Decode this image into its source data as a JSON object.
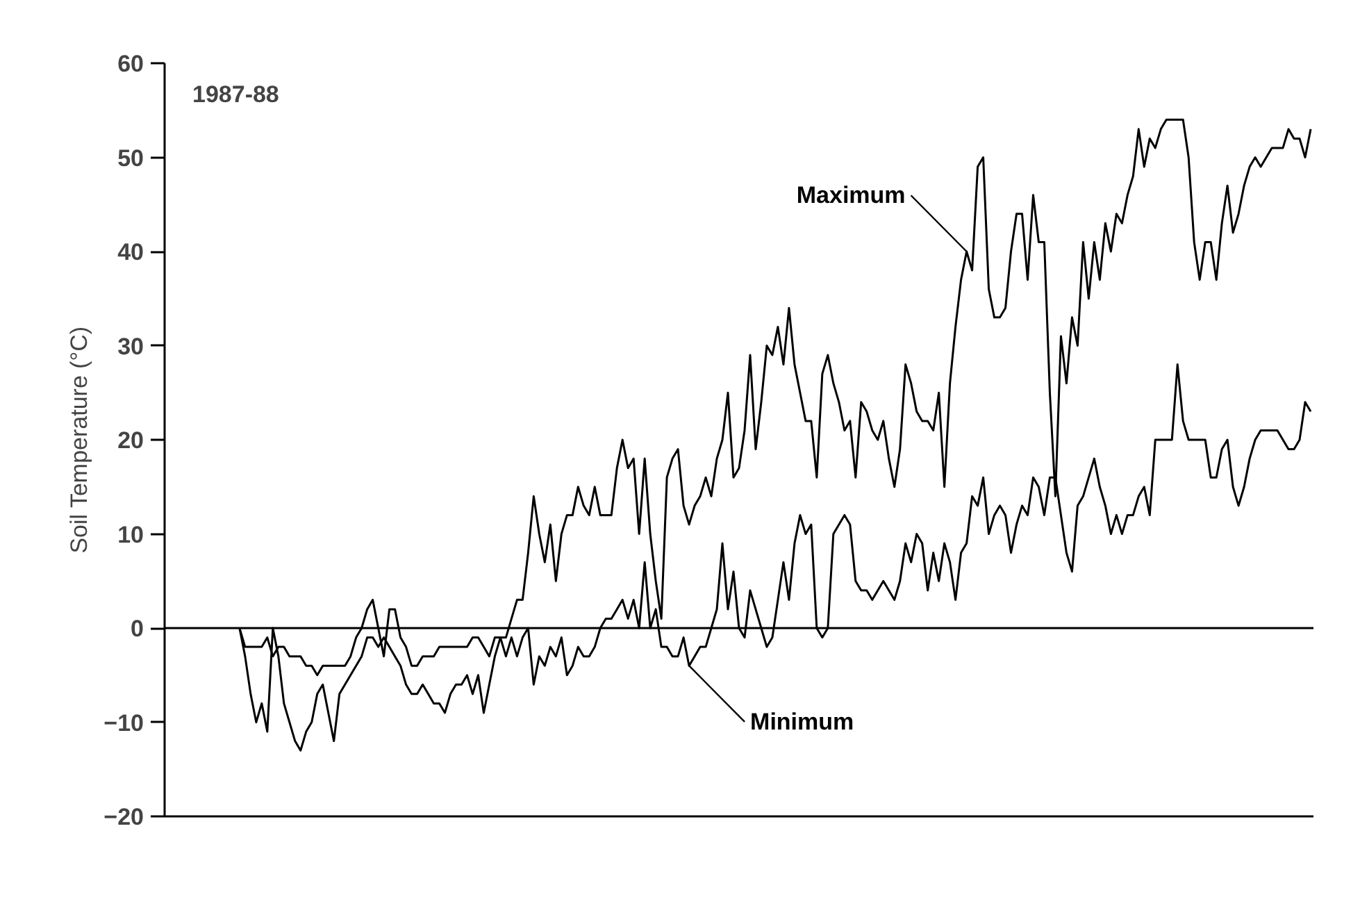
{
  "chart_data": {
    "type": "line",
    "ylabel": "Soil Temperature (°C)",
    "annotations": [
      "1987-88"
    ],
    "categories": [
      null,
      null,
      null,
      null,
      null,
      null,
      null,
      null,
      null,
      null,
      null,
      null,
      null,
      null,
      null,
      null,
      null,
      null,
      null,
      null,
      null,
      null,
      null,
      null,
      null,
      null,
      null,
      null,
      null,
      null,
      null,
      null,
      null,
      null,
      null,
      null,
      null,
      null,
      null,
      null,
      null,
      null,
      null,
      null,
      null,
      null,
      null,
      null,
      null,
      null,
      null,
      null,
      null,
      null,
      null,
      null,
      null,
      null,
      null,
      null,
      null,
      null,
      null,
      null,
      null,
      null,
      null,
      null,
      null,
      null,
      null,
      null,
      null,
      null,
      null,
      null,
      null,
      null,
      null,
      null,
      null,
      null,
      null,
      null,
      null,
      null,
      null,
      null,
      null,
      null,
      null,
      null,
      null,
      null,
      null,
      null,
      null,
      null,
      null,
      null,
      null,
      null,
      null,
      null,
      null,
      null,
      null,
      null,
      null,
      null,
      null,
      null,
      null,
      null,
      null,
      null,
      null,
      null,
      null,
      null,
      null,
      null,
      null,
      null,
      null,
      null,
      null,
      null,
      null,
      null,
      null,
      null,
      null,
      null,
      null,
      null,
      null,
      null,
      null,
      null,
      null,
      null,
      null,
      null,
      null,
      null,
      null,
      null,
      null,
      null,
      null,
      null,
      null,
      null,
      null,
      null,
      null,
      null,
      null,
      null,
      null,
      null,
      null,
      null,
      null,
      null,
      null,
      null,
      null,
      null,
      null,
      null,
      null,
      null,
      null,
      null,
      null,
      null,
      null,
      null,
      null,
      null,
      null,
      null,
      null,
      null,
      null,
      null,
      null,
      null,
      null,
      null,
      null,
      null,
      null,
      null,
      null,
      null,
      null,
      null,
      null,
      null,
      null,
      null,
      null,
      null,
      null
    ],
    "ylim": [
      -20,
      60
    ],
    "yticks": [
      -20,
      -10,
      0,
      10,
      20,
      30,
      40,
      50,
      60
    ],
    "tick_labels": "y",
    "grid": false,
    "marker": "none",
    "line_style": "solid",
    "ref_lines": [
      {
        "axis": "y",
        "value": 0,
        "color": "#000000"
      }
    ],
    "series": [
      {
        "name": "Maximum",
        "color": "#000000",
        "values": [
          null,
          null,
          null,
          null,
          null,
          null,
          null,
          null,
          null,
          null,
          null,
          null,
          null,
          0,
          -2,
          -2,
          -2,
          -2,
          -1,
          -3,
          -2,
          -2,
          -3,
          -3,
          -3,
          -4,
          -4,
          -5,
          -4,
          -4,
          -4,
          -4,
          -4,
          -3,
          -1,
          0,
          2,
          3,
          0,
          -3,
          2,
          2,
          -1,
          -2,
          -4,
          -4,
          -3,
          -3,
          -3,
          -2,
          -2,
          -2,
          -2,
          -2,
          -2,
          -1,
          -1,
          -2,
          -3,
          -1,
          -1,
          -1,
          1,
          3,
          3,
          8,
          14,
          10,
          7,
          11,
          5,
          10,
          12,
          12,
          15,
          13,
          12,
          15,
          12,
          12,
          12,
          17,
          20,
          17,
          18,
          10,
          18,
          10,
          5,
          1,
          16,
          18,
          19,
          13,
          11,
          13,
          14,
          16,
          14,
          18,
          20,
          25,
          16,
          17,
          21,
          29,
          19,
          24,
          30,
          29,
          32,
          28,
          34,
          28,
          25,
          22,
          22,
          16,
          27,
          29,
          26,
          24,
          21,
          22,
          16,
          24,
          23,
          21,
          20,
          22,
          18,
          15,
          19,
          28,
          26,
          23,
          22,
          22,
          21,
          25,
          15,
          26,
          32,
          37,
          40,
          38,
          49,
          50,
          36,
          33,
          33,
          34,
          40,
          44,
          44,
          37,
          46,
          41,
          41,
          25,
          14,
          31,
          26,
          33,
          30,
          41,
          35,
          41,
          37,
          43,
          40,
          44,
          43,
          46,
          48,
          53,
          49,
          52,
          51,
          53,
          54,
          54,
          54,
          54,
          50,
          41,
          37,
          41,
          41,
          37,
          43,
          47,
          42,
          44,
          47,
          49,
          50,
          49,
          50,
          51,
          51,
          51,
          53,
          52,
          52,
          50,
          53
        ]
      },
      {
        "name": "Minimum",
        "color": "#000000",
        "values": [
          null,
          null,
          null,
          null,
          null,
          null,
          null,
          null,
          null,
          null,
          null,
          null,
          null,
          0,
          -3,
          -7,
          -10,
          -8,
          -11,
          0,
          -3,
          -8,
          -10,
          -12,
          -13,
          -11,
          -10,
          -7,
          -6,
          -9,
          -12,
          -7,
          -6,
          -5,
          -4,
          -3,
          -1,
          -1,
          -2,
          -1,
          -2,
          -3,
          -4,
          -6,
          -7,
          -7,
          -6,
          -7,
          -8,
          -8,
          -9,
          -7,
          -6,
          -6,
          -5,
          -7,
          -5,
          -9,
          -6,
          -3,
          -1,
          -3,
          -1,
          -3,
          -1,
          0,
          -6,
          -3,
          -4,
          -2,
          -3,
          -1,
          -5,
          -4,
          -2,
          -3,
          -3,
          -2,
          0,
          1,
          1,
          2,
          3,
          1,
          3,
          0,
          7,
          0,
          2,
          -2,
          -2,
          -3,
          -3,
          -1,
          -4,
          -3,
          -2,
          -2,
          0,
          2,
          9,
          2,
          6,
          0,
          -1,
          4,
          2,
          0,
          -2,
          -1,
          3,
          7,
          3,
          9,
          12,
          10,
          11,
          0,
          -1,
          0,
          10,
          11,
          12,
          11,
          5,
          4,
          4,
          3,
          4,
          5,
          4,
          3,
          5,
          9,
          7,
          10,
          9,
          4,
          8,
          5,
          9,
          7,
          3,
          8,
          9,
          14,
          13,
          16,
          10,
          12,
          13,
          12,
          8,
          11,
          13,
          12,
          16,
          15,
          12,
          16,
          16,
          12,
          8,
          6,
          13,
          14,
          16,
          18,
          15,
          13,
          10,
          12,
          10,
          12,
          12,
          14,
          15,
          12,
          20,
          20,
          20,
          20,
          28,
          22,
          20,
          20,
          20,
          20,
          16,
          16,
          19,
          20,
          15,
          13,
          15,
          18,
          20,
          21,
          21,
          21,
          21,
          20,
          19,
          19,
          20,
          24,
          23
        ]
      }
    ]
  }
}
